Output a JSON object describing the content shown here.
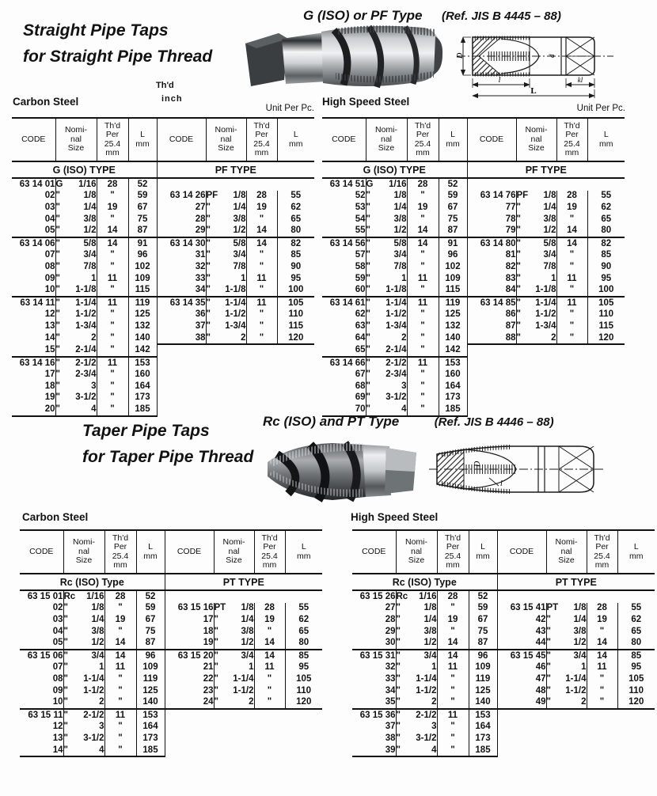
{
  "sections": [
    {
      "id": "straight",
      "title_line1": "Straight Pipe Taps",
      "title_line2": "for Straight Pipe Thread",
      "type_label": "G (ISO) or PF Type",
      "ref_label": "(Ref. JIS B 4445 – 88)",
      "thd_label": "Th'd",
      "inch_label": "inch",
      "drawing_labels": {
        "D": "D",
        "l": "l",
        "L": "L",
        "kl": "kl",
        "d": "d"
      }
    },
    {
      "id": "taper",
      "title_line1": "Taper Pipe Taps",
      "title_line2": "for Taper Pipe Thread",
      "type_label": "Rc (ISO) and PT Type",
      "ref_label": "(Ref. JIS B 4446 – 88)",
      "drawing_labels": {
        "D": "D",
        "l": "l"
      }
    }
  ],
  "column_header": {
    "code": "CODE",
    "nominal": "Nomi-\nnal\nSize",
    "thd": "Th'd\nPer\n25.4\nmm",
    "l": "L\nmm"
  },
  "tables": [
    {
      "id": "straight-carbon",
      "material": "Carbon Steel",
      "unit": "Unit Per Pc.",
      "left_head": "G (ISO) TYPE",
      "right_head": "PF TYPE",
      "groups": [
        {
          "left": [
            [
              "63 14 01",
              "G",
              "1/16",
              "28",
              "52"
            ],
            [
              "02",
              "\"",
              "1/8",
              "\"",
              "59"
            ],
            [
              "03",
              "\"",
              "1/4",
              "19",
              "67"
            ],
            [
              "04",
              "\"",
              "3/8",
              "\"",
              "75"
            ],
            [
              "05",
              "\"",
              "1/2",
              "14",
              "87"
            ]
          ],
          "right_offset": 1,
          "right": [
            [
              "63 14 26",
              "PF",
              "1/8",
              "28",
              "55"
            ],
            [
              "27",
              "\"",
              "1/4",
              "19",
              "62"
            ],
            [
              "28",
              "\"",
              "3/8",
              "\"",
              "65"
            ],
            [
              "29",
              "\"",
              "1/2",
              "14",
              "80"
            ]
          ]
        },
        {
          "left": [
            [
              "63 14 06",
              "\"",
              "5/8",
              "14",
              "91"
            ],
            [
              "07",
              "\"",
              "3/4",
              "\"",
              "96"
            ],
            [
              "08",
              "\"",
              "7/8",
              "\"",
              "102"
            ],
            [
              "09",
              "\"",
              "1",
              "11",
              "109"
            ],
            [
              "10",
              "\"",
              "1-1/8",
              "\"",
              "115"
            ]
          ],
          "right_offset": 0,
          "right": [
            [
              "63 14 30",
              "\"",
              "5/8",
              "14",
              "82"
            ],
            [
              "31",
              "\"",
              "3/4",
              "\"",
              "85"
            ],
            [
              "32",
              "\"",
              "7/8",
              "\"",
              "90"
            ],
            [
              "33",
              "\"",
              "1",
              "11",
              "95"
            ],
            [
              "34",
              "\"",
              "1-1/8",
              "\"",
              "100"
            ]
          ]
        },
        {
          "left": [
            [
              "63 14 11",
              "\"",
              "1-1/4",
              "11",
              "119"
            ],
            [
              "12",
              "\"",
              "1-1/2",
              "\"",
              "125"
            ],
            [
              "13",
              "\"",
              "1-3/4",
              "\"",
              "132"
            ],
            [
              "14",
              "\"",
              "2",
              "\"",
              "140"
            ],
            [
              "15",
              "\"",
              "2-1/4",
              "\"",
              "142"
            ]
          ],
          "right_offset": 0,
          "right": [
            [
              "63 14 35",
              "\"",
              "1-1/4",
              "11",
              "105"
            ],
            [
              "36",
              "\"",
              "1-1/2",
              "\"",
              "110"
            ],
            [
              "37",
              "\"",
              "1-3/4",
              "\"",
              "115"
            ],
            [
              "38",
              "\"",
              "2",
              "\"",
              "120"
            ]
          ]
        },
        {
          "left": [
            [
              "63 14 16",
              "\"",
              "2-1/2",
              "11",
              "153"
            ],
            [
              "17",
              "\"",
              "2-3/4",
              "\"",
              "160"
            ],
            [
              "18",
              "\"",
              "3",
              "\"",
              "164"
            ],
            [
              "19",
              "\"",
              "3-1/2",
              "\"",
              "173"
            ],
            [
              "20",
              "\"",
              "4",
              "\"",
              "185"
            ]
          ],
          "right_offset": 0,
          "right": []
        }
      ]
    },
    {
      "id": "straight-hss",
      "material": "High Speed Steel",
      "unit": "Unit Per Pc.",
      "left_head": "G (ISO) TYPE",
      "right_head": "PF TYPE",
      "groups": [
        {
          "left": [
            [
              "63 14 51",
              "G",
              "1/16",
              "28",
              "52"
            ],
            [
              "52",
              "\"",
              "1/8",
              "\"",
              "59"
            ],
            [
              "53",
              "\"",
              "1/4",
              "19",
              "67"
            ],
            [
              "54",
              "\"",
              "3/8",
              "\"",
              "75"
            ],
            [
              "55",
              "\"",
              "1/2",
              "14",
              "87"
            ]
          ],
          "right_offset": 1,
          "right": [
            [
              "63 14 76",
              "PF",
              "1/8",
              "28",
              "55"
            ],
            [
              "77",
              "\"",
              "1/4",
              "19",
              "62"
            ],
            [
              "78",
              "\"",
              "3/8",
              "\"",
              "65"
            ],
            [
              "79",
              "\"",
              "1/2",
              "14",
              "80"
            ]
          ]
        },
        {
          "left": [
            [
              "63 14 56",
              "\"",
              "5/8",
              "14",
              "91"
            ],
            [
              "57",
              "\"",
              "3/4",
              "\"",
              "96"
            ],
            [
              "58",
              "\"",
              "7/8",
              "\"",
              "102"
            ],
            [
              "59",
              "\"",
              "1",
              "11",
              "109"
            ],
            [
              "60",
              "\"",
              "1-1/8",
              "\"",
              "115"
            ]
          ],
          "right_offset": 0,
          "right": [
            [
              "63 14 80",
              "\"",
              "5/8",
              "14",
              "82"
            ],
            [
              "81",
              "\"",
              "3/4",
              "\"",
              "85"
            ],
            [
              "82",
              "\"",
              "7/8",
              "\"",
              "90"
            ],
            [
              "83",
              "\"",
              "1",
              "11",
              "95"
            ],
            [
              "84",
              "\"",
              "1-1/8",
              "\"",
              "100"
            ]
          ]
        },
        {
          "left": [
            [
              "63 14 61",
              "\"",
              "1-1/4",
              "11",
              "119"
            ],
            [
              "62",
              "\"",
              "1-1/2",
              "\"",
              "125"
            ],
            [
              "63",
              "\"",
              "1-3/4",
              "\"",
              "132"
            ],
            [
              "64",
              "\"",
              "2",
              "\"",
              "140"
            ],
            [
              "65",
              "\"",
              "2-1/4",
              "\"",
              "142"
            ]
          ],
          "right_offset": 0,
          "right": [
            [
              "63 14 85",
              "\"",
              "1-1/4",
              "11",
              "105"
            ],
            [
              "86",
              "\"",
              "1-1/2",
              "\"",
              "110"
            ],
            [
              "87",
              "\"",
              "1-3/4",
              "\"",
              "115"
            ],
            [
              "88",
              "\"",
              "2",
              "\"",
              "120"
            ]
          ]
        },
        {
          "left": [
            [
              "63 14 66",
              "\"",
              "2-1/2",
              "11",
              "153"
            ],
            [
              "67",
              "\"",
              "2-3/4",
              "\"",
              "160"
            ],
            [
              "68",
              "\"",
              "3",
              "\"",
              "164"
            ],
            [
              "69",
              "\"",
              "3-1/2",
              "\"",
              "173"
            ],
            [
              "70",
              "\"",
              "4",
              "\"",
              "185"
            ]
          ],
          "right_offset": 0,
          "right": []
        }
      ]
    },
    {
      "id": "taper-carbon",
      "material": "Carbon Steel",
      "left_head": "Rc (ISO) Type",
      "right_head": "PT TYPE",
      "groups": [
        {
          "left": [
            [
              "63 15 01",
              "Rc",
              "1/16",
              "28",
              "52"
            ],
            [
              "02",
              "\"",
              "1/8",
              "\"",
              "59"
            ],
            [
              "03",
              "\"",
              "1/4",
              "19",
              "67"
            ],
            [
              "04",
              "\"",
              "3/8",
              "\"",
              "75"
            ],
            [
              "05",
              "\"",
              "1/2",
              "14",
              "87"
            ]
          ],
          "right_offset": 1,
          "right": [
            [
              "63 15 16",
              "PT",
              "1/8",
              "28",
              "55"
            ],
            [
              "17",
              "\"",
              "1/4",
              "19",
              "62"
            ],
            [
              "18",
              "\"",
              "3/8",
              "\"",
              "65"
            ],
            [
              "19",
              "\"",
              "1/2",
              "14",
              "80"
            ]
          ]
        },
        {
          "left": [
            [
              "63 15 06",
              "\"",
              "3/4",
              "14",
              "96"
            ],
            [
              "07",
              "\"",
              "1",
              "11",
              "109"
            ],
            [
              "08",
              "\"",
              "1-1/4",
              "\"",
              "119"
            ],
            [
              "09",
              "\"",
              "1-1/2",
              "\"",
              "125"
            ],
            [
              "10",
              "\"",
              "2",
              "\"",
              "140"
            ]
          ],
          "right_offset": 0,
          "right": [
            [
              "63 15 20",
              "\"",
              "3/4",
              "14",
              "85"
            ],
            [
              "21",
              "\"",
              "1",
              "11",
              "95"
            ],
            [
              "22",
              "\"",
              "1-1/4",
              "\"",
              "105"
            ],
            [
              "23",
              "\"",
              "1-1/2",
              "\"",
              "110"
            ],
            [
              "24",
              "\"",
              "2",
              "\"",
              "120"
            ]
          ]
        },
        {
          "left": [
            [
              "63 15 11",
              "\"",
              "2-1/2",
              "11",
              "153"
            ],
            [
              "12",
              "\"",
              "3",
              "\"",
              "164"
            ],
            [
              "13",
              "\"",
              "3-1/2",
              "\"",
              "173"
            ],
            [
              "14",
              "\"",
              "4",
              "\"",
              "185"
            ]
          ],
          "right_offset": 0,
          "right": []
        }
      ]
    },
    {
      "id": "taper-hss",
      "material": "High Speed Steel",
      "left_head": "Rc (ISO) Type",
      "right_head": "PT TYPE",
      "groups": [
        {
          "left": [
            [
              "63 15 26",
              "Rc",
              "1/16",
              "28",
              "52"
            ],
            [
              "27",
              "\"",
              "1/8",
              "\"",
              "59"
            ],
            [
              "28",
              "\"",
              "1/4",
              "19",
              "67"
            ],
            [
              "29",
              "\"",
              "3/8",
              "\"",
              "75"
            ],
            [
              "30",
              "\"",
              "1/2",
              "14",
              "87"
            ]
          ],
          "right_offset": 1,
          "right": [
            [
              "63 15 41",
              "PT",
              "1/8",
              "28",
              "55"
            ],
            [
              "42",
              "\"",
              "1/4",
              "19",
              "62"
            ],
            [
              "43",
              "\"",
              "3/8",
              "\"",
              "65"
            ],
            [
              "44",
              "\"",
              "1/2",
              "14",
              "80"
            ]
          ]
        },
        {
          "left": [
            [
              "63 15 31",
              "\"",
              "3/4",
              "14",
              "96"
            ],
            [
              "32",
              "\"",
              "1",
              "11",
              "109"
            ],
            [
              "33",
              "\"",
              "1-1/4",
              "\"",
              "119"
            ],
            [
              "34",
              "\"",
              "1-1/2",
              "\"",
              "125"
            ],
            [
              "35",
              "\"",
              "2",
              "\"",
              "140"
            ]
          ],
          "right_offset": 0,
          "right": [
            [
              "63 15 45",
              "\"",
              "3/4",
              "14",
              "85"
            ],
            [
              "46",
              "\"",
              "1",
              "11",
              "95"
            ],
            [
              "47",
              "\"",
              "1-1/4",
              "\"",
              "105"
            ],
            [
              "48",
              "\"",
              "1-1/2",
              "\"",
              "110"
            ],
            [
              "49",
              "\"",
              "2",
              "\"",
              "120"
            ]
          ]
        },
        {
          "left": [
            [
              "63 15 36",
              "\"",
              "2-1/2",
              "11",
              "153"
            ],
            [
              "37",
              "\"",
              "3",
              "\"",
              "164"
            ],
            [
              "38",
              "\"",
              "3-1/2",
              "\"",
              "173"
            ],
            [
              "39",
              "\"",
              "4",
              "\"",
              "185"
            ]
          ],
          "right_offset": 0,
          "right": []
        }
      ]
    }
  ]
}
